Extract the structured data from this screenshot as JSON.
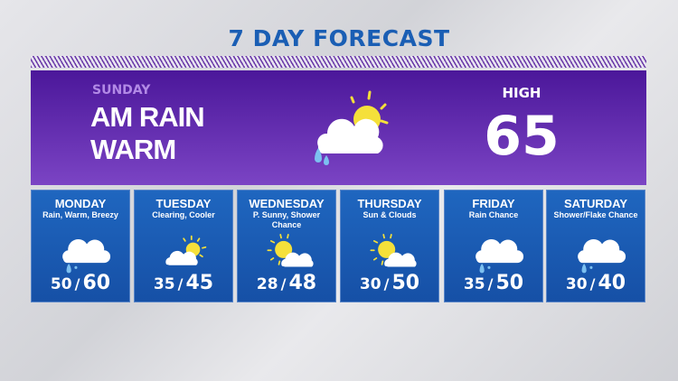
{
  "title": "7 DAY FORECAST",
  "today": {
    "day": "SUNDAY",
    "line1": "AM RAIN",
    "line2": "WARM",
    "high_label": "HIGH",
    "high": "65",
    "icon": "rain-cloud-sun-icon"
  },
  "days": [
    {
      "name": "MONDAY",
      "desc": "Rain, Warm, Breezy",
      "low": "50",
      "high": "60",
      "icon": "rain-cloud-icon"
    },
    {
      "name": "TUESDAY",
      "desc": "Clearing, Cooler",
      "low": "35",
      "high": "45",
      "icon": "cloud-sun-icon"
    },
    {
      "name": "WEDNESDAY",
      "desc": "P. Sunny, Shower Chance",
      "low": "28",
      "high": "48",
      "icon": "sun-cloud-icon"
    },
    {
      "name": "THURSDAY",
      "desc": "Sun & Clouds",
      "low": "30",
      "high": "50",
      "icon": "sun-cloud-icon"
    },
    {
      "name": "FRIDAY",
      "desc": "Rain Chance",
      "low": "35",
      "high": "50",
      "icon": "rain-cloud-icon"
    },
    {
      "name": "SATURDAY",
      "desc": "Shower/Flake Chance",
      "low": "30",
      "high": "40",
      "icon": "rain-cloud-icon"
    }
  ],
  "separator": "/",
  "colors": {
    "title": "#1a5eb4",
    "banner": "#5a28aa",
    "panel": "#1d5fb8",
    "sun": "#f5e03a",
    "rain": "#7cc0f0"
  }
}
